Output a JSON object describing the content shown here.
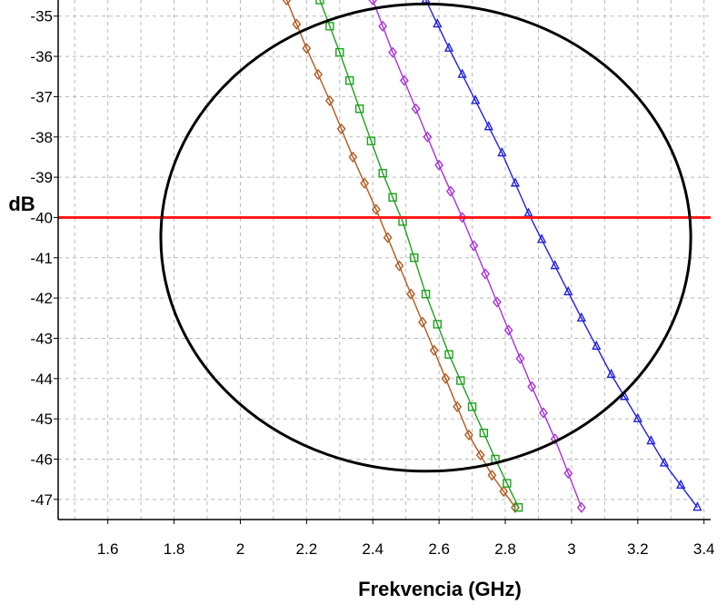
{
  "chart_data": {
    "type": "line",
    "xlabel": "Frekvencia (GHz)",
    "ylabel": "dB",
    "xlim": [
      1.45,
      3.42
    ],
    "ylim": [
      -47.5,
      -34.6
    ],
    "x_ticks": [
      1.6,
      1.8,
      2,
      2.2,
      2.4,
      2.6,
      2.8,
      3,
      3.2,
      3.4
    ],
    "y_ticks": [
      -35,
      -36,
      -37,
      -38,
      -39,
      -40,
      -41,
      -42,
      -43,
      -44,
      -45,
      -46,
      -47
    ],
    "grid": true,
    "reference_line": {
      "y": -40,
      "color": "#ff1a1a"
    },
    "highlight_ellipse": {
      "cx": 2.56,
      "cy": -40.5,
      "rx": 0.8,
      "ry": 5.8,
      "color": "#000000"
    },
    "series": [
      {
        "color": "#b05a1e",
        "marker": "diamond",
        "x": [
          2.14,
          2.2,
          2.27,
          2.34,
          2.41,
          2.48,
          2.55,
          2.62,
          2.69,
          2.76,
          2.83
        ],
        "y": [
          -34.6,
          -35.8,
          -37.1,
          -38.5,
          -39.8,
          -41.2,
          -42.6,
          -44.0,
          -45.4,
          -46.4,
          -47.2
        ]
      },
      {
        "color": "#1ea01e",
        "marker": "square",
        "x": [
          2.24,
          2.3,
          2.36,
          2.43,
          2.49,
          2.56,
          2.63,
          2.7,
          2.77,
          2.84
        ],
        "y": [
          -34.6,
          -35.9,
          -37.3,
          -38.9,
          -40.1,
          -41.9,
          -43.4,
          -44.7,
          -46.0,
          -47.2
        ]
      },
      {
        "color": "#a832d8",
        "marker": "diamond",
        "x": [
          2.4,
          2.46,
          2.53,
          2.6,
          2.67,
          2.74,
          2.81,
          2.88,
          2.95,
          3.03
        ],
        "y": [
          -34.6,
          -35.9,
          -37.3,
          -38.7,
          -40.0,
          -41.4,
          -42.8,
          -44.2,
          -45.5,
          -47.2
        ]
      },
      {
        "color": "#2020e0",
        "marker": "triangle",
        "x": [
          2.56,
          2.63,
          2.71,
          2.79,
          2.87,
          2.95,
          3.03,
          3.12,
          3.2,
          3.28,
          3.38
        ],
        "y": [
          -34.6,
          -35.8,
          -37.1,
          -38.4,
          -39.9,
          -41.2,
          -42.5,
          -43.9,
          -45.0,
          -46.1,
          -47.2
        ]
      }
    ]
  }
}
